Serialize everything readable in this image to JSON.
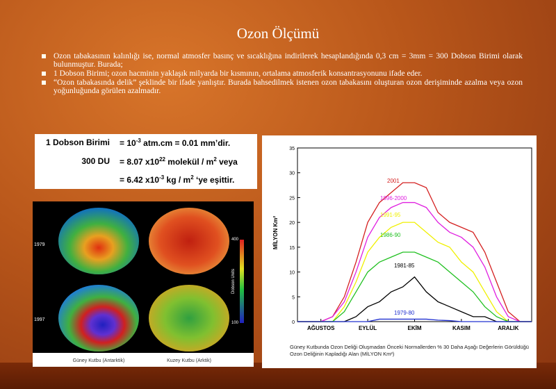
{
  "title": "Ozon Ölçümü",
  "bullets": [
    "Ozon tabakasının kalınlığı ise, normal atmosfer basınç ve sıcaklığına indirilerek hesaplandığında 0,3 cm = 3mm = 300 Dobson Birimi olarak bulunmuştur. Burada;",
    "1 Dobson Birimi; ozon hacminin yaklaşık milyarda bir kısmının, ortalama atmosferik konsantrasyonunu ifade eder.",
    "“Ozon tabakasında delik” şeklinde bir ifade yanlıştır. Burada bahsedilmek istenen ozon tabakasını oluşturan ozon derişiminde azalma veya ozon yoğunluğunda görülen  azalmadır."
  ],
  "dobson_box": {
    "rows": [
      {
        "label": "1 Dobson Birimi",
        "parts": [
          "= 10",
          "-3",
          " atm.cm = 0.01 mm’dir."
        ]
      },
      {
        "label": "300 DU",
        "parts": [
          "= 8.07 x10",
          "22",
          " molekül / m",
          "2",
          "  veya"
        ]
      },
      {
        "label": "",
        "parts": [
          "= 6.42 x10",
          "-3",
          "  kg / m",
          "2",
          " ‘ye eşittir."
        ]
      }
    ]
  },
  "map_panel": {
    "year_labels": [
      "1979",
      "1997"
    ],
    "scale_title": "Dobson Units",
    "scale_max": "400",
    "scale_min": "100",
    "captions": [
      "Güney Kutbu (Antarktik)",
      "Kuzey Kutbu (Arktik)"
    ]
  },
  "chart_data": {
    "type": "line",
    "ylabel": "MİLYON Km²",
    "caption": "Güney Kutbunda Ozon Deliği Oluşmadan Önceki Normallerden % 30 Daha Aşağı Değerlerin Görüldüğü Ozon Deliğinin Kapladığı Alan (MİLYON Km²)",
    "categories": [
      null,
      null,
      "AĞUSTOS",
      null,
      null,
      null,
      "EYLÜL",
      null,
      null,
      null,
      "EKİM",
      null,
      null,
      null,
      "KASIM",
      null,
      null,
      null,
      "ARALIK",
      null,
      null
    ],
    "ylim": [
      0,
      35
    ],
    "yticks": [
      0,
      5,
      10,
      15,
      20,
      25,
      30,
      35
    ],
    "series": [
      {
        "name": "2001",
        "color": "#d42020",
        "values": [
          0,
          0,
          0,
          1,
          5,
          12,
          20,
          24,
          26,
          28,
          28,
          27,
          22,
          20,
          19,
          18,
          14,
          8,
          2,
          0,
          0
        ]
      },
      {
        "name": "1996-2000",
        "color": "#e020e0",
        "values": [
          0,
          0,
          0,
          1,
          4,
          10,
          17,
          21,
          23,
          24,
          24,
          23,
          20,
          18,
          17,
          15,
          11,
          5,
          1,
          0,
          0
        ]
      },
      {
        "name": "1991-95",
        "color": "#f0f000",
        "values": [
          0,
          0,
          0,
          0,
          3,
          8,
          14,
          17,
          19,
          20,
          20,
          18,
          16,
          15,
          12,
          10,
          6,
          2,
          0,
          0,
          0
        ]
      },
      {
        "name": "1986-90",
        "color": "#20c020",
        "values": [
          0,
          0,
          0,
          0,
          2,
          6,
          10,
          12,
          13,
          14,
          14,
          13,
          12,
          10,
          8,
          6,
          3,
          1,
          0,
          0,
          0
        ]
      },
      {
        "name": "1981-85",
        "color": "#000000",
        "values": [
          0,
          0,
          0,
          0,
          0,
          1,
          3,
          4,
          6,
          7,
          9,
          6,
          4,
          3,
          2,
          1,
          1,
          0,
          0,
          0,
          0
        ]
      },
      {
        "name": "1979-80",
        "color": "#2030d0",
        "values": [
          0,
          0,
          0,
          0,
          0,
          0,
          0,
          0.5,
          0.5,
          0.5,
          0.5,
          0.5,
          0.3,
          0.2,
          0,
          0,
          0,
          0,
          0,
          0,
          0
        ]
      }
    ]
  }
}
